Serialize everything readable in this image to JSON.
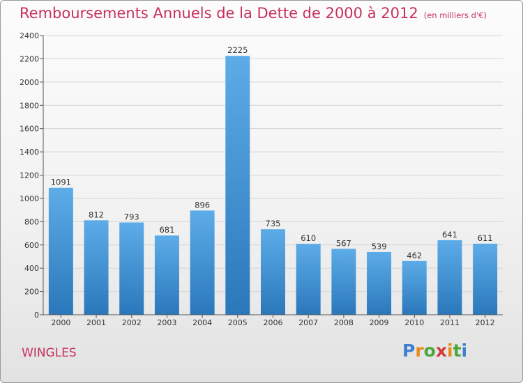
{
  "title": "Remboursements Annuels de la Dette de 2000 à 2012",
  "unit_label": "(en milliers d'€)",
  "city": "WINGLES",
  "logo": {
    "letters": [
      "P",
      "r",
      "o",
      "x",
      "i",
      "t",
      "i"
    ],
    "colors": [
      "#3b7fd0",
      "#e8891a",
      "#4aa63a",
      "#d23b3b",
      "#e8891a",
      "#4aa63a",
      "#3b7fd0"
    ]
  },
  "colors": {
    "bar_top": "#5dace8",
    "bar_bottom": "#2a78bb",
    "grid": "#d4d4d4",
    "axis": "#555555",
    "text": "#333333"
  },
  "chart_data": {
    "type": "bar",
    "categories": [
      "2000",
      "2001",
      "2002",
      "2003",
      "2004",
      "2005",
      "2006",
      "2007",
      "2008",
      "2009",
      "2010",
      "2011",
      "2012"
    ],
    "values": [
      1091,
      812,
      793,
      681,
      896,
      2225,
      735,
      610,
      567,
      539,
      462,
      641,
      611
    ],
    "data_labels": [
      "1091",
      "812",
      "793",
      "681",
      "896",
      "2225",
      "735",
      "610",
      "567",
      "539",
      "462",
      "641",
      "611"
    ],
    "y_ticks": [
      "0",
      "200",
      "400",
      "600",
      "800",
      "1000",
      "1200",
      "1400",
      "1600",
      "1800",
      "2000",
      "2200",
      "2400"
    ],
    "ylim": [
      0,
      2400
    ],
    "grid": true,
    "legend": "none",
    "title": "Remboursements Annuels de la Dette de 2000 à 2012",
    "xlabel": "",
    "ylabel": ""
  }
}
